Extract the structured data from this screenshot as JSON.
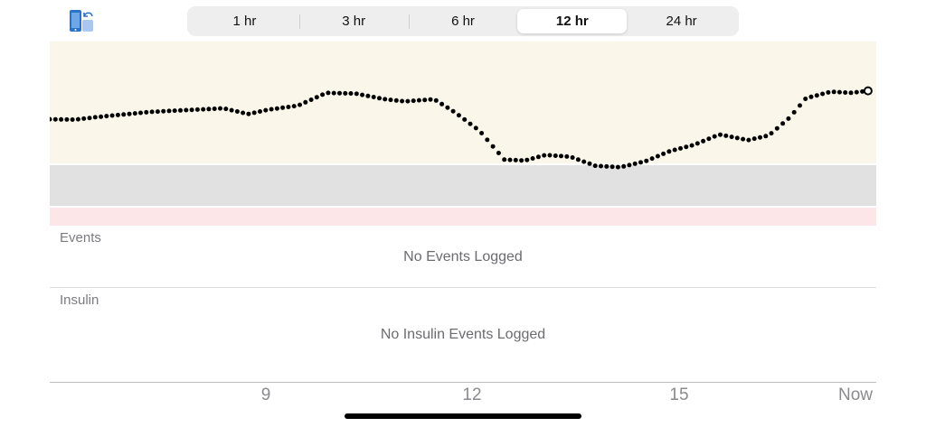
{
  "toolbar": {
    "rotate_icon": "phone-rotate-icon",
    "ranges": [
      "1 hr",
      "3 hr",
      "6 hr",
      "12 hr",
      "24 hr"
    ],
    "selected_range": "12 hr"
  },
  "colors": {
    "high_zone": "#faf6e9",
    "target_zone": "#e1e1e2",
    "low_zone": "#fde6e8",
    "reading_dots": "#000000",
    "accent": "#2a73c9"
  },
  "events": {
    "title": "Events",
    "empty": "No Events Logged"
  },
  "insulin": {
    "title": "Insulin",
    "empty": "No Insulin Events Logged"
  },
  "chart_data": {
    "type": "scatter",
    "x_ticks": [
      "9",
      "12",
      "15",
      "Now"
    ],
    "zones": [
      "high",
      "target",
      "low"
    ],
    "trace_shape": [
      [
        0,
        0.418
      ],
      [
        0.03,
        0.42
      ],
      [
        0.06,
        0.405
      ],
      [
        0.09,
        0.392
      ],
      [
        0.12,
        0.379
      ],
      [
        0.15,
        0.372
      ],
      [
        0.18,
        0.366
      ],
      [
        0.21,
        0.359
      ],
      [
        0.24,
        0.39
      ],
      [
        0.265,
        0.366
      ],
      [
        0.3,
        0.345
      ],
      [
        0.335,
        0.276
      ],
      [
        0.37,
        0.28
      ],
      [
        0.405,
        0.31
      ],
      [
        0.43,
        0.322
      ],
      [
        0.465,
        0.31
      ],
      [
        0.49,
        0.38
      ],
      [
        0.52,
        0.48
      ],
      [
        0.55,
        0.635
      ],
      [
        0.575,
        0.64
      ],
      [
        0.6,
        0.61
      ],
      [
        0.63,
        0.62
      ],
      [
        0.66,
        0.668
      ],
      [
        0.69,
        0.676
      ],
      [
        0.72,
        0.645
      ],
      [
        0.75,
        0.59
      ],
      [
        0.78,
        0.555
      ],
      [
        0.81,
        0.5
      ],
      [
        0.845,
        0.53
      ],
      [
        0.87,
        0.505
      ],
      [
        0.895,
        0.41
      ],
      [
        0.915,
        0.305
      ],
      [
        0.945,
        0.27
      ],
      [
        0.97,
        0.276
      ],
      [
        0.99,
        0.265
      ]
    ]
  }
}
